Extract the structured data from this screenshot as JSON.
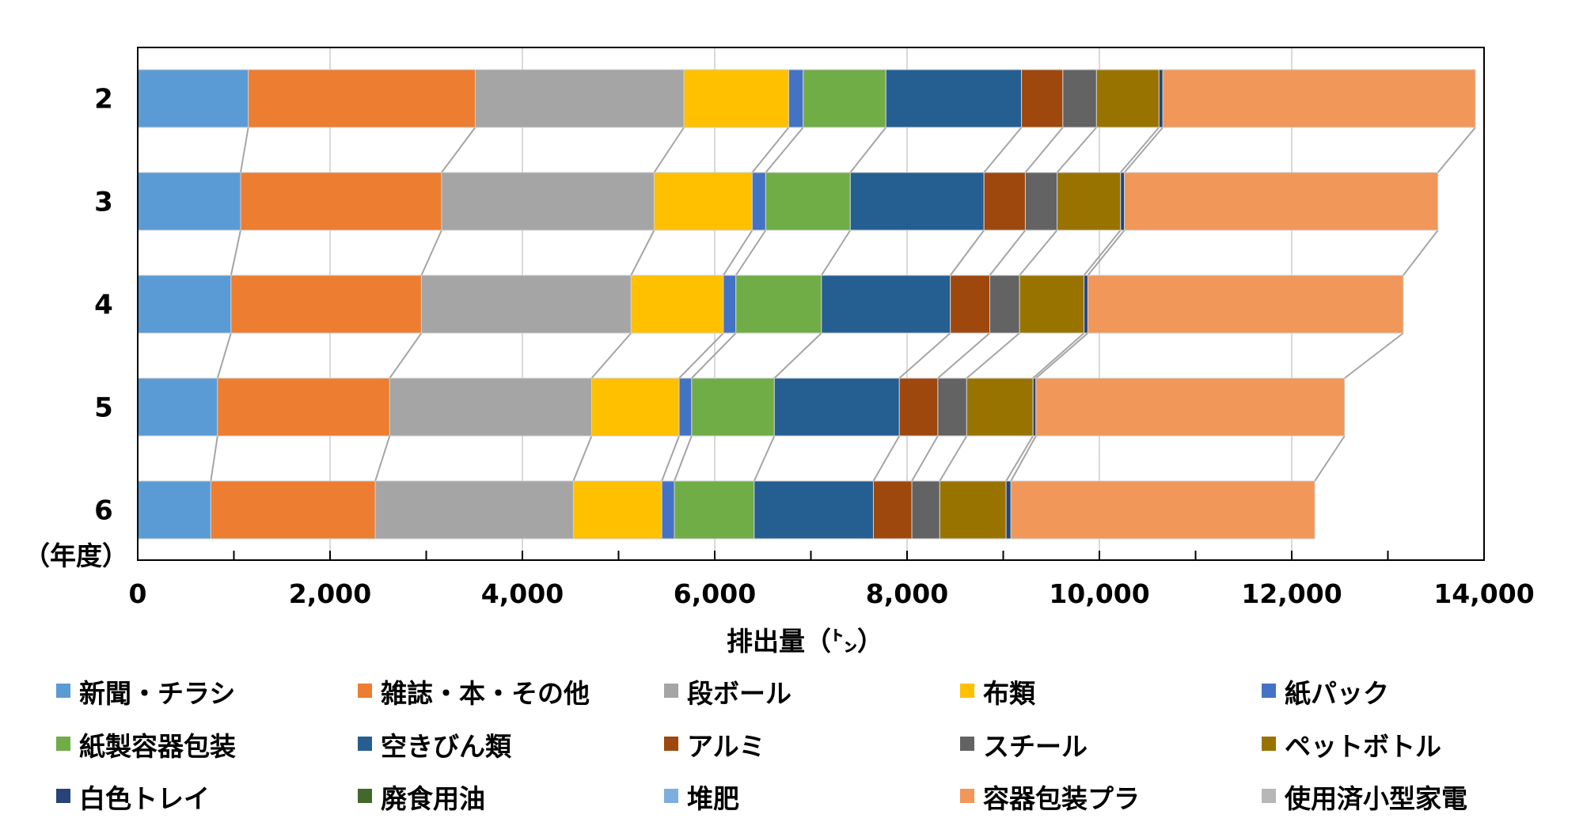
{
  "chart_data": {
    "type": "bar",
    "orientation": "horizontal",
    "stacked": true,
    "series_lines": true,
    "categories": [
      "2",
      "3",
      "4",
      "5",
      "6"
    ],
    "category_axis_label": "（年度）",
    "xlabel": "排出量（㌧）",
    "xlim": [
      0,
      14000
    ],
    "xticks": [
      0,
      2000,
      4000,
      6000,
      8000,
      10000,
      12000,
      14000
    ],
    "grid": true,
    "legend_position": "bottom",
    "series": [
      {
        "name": "新聞・チラシ",
        "color": "#5B9BD5",
        "values": [
          1150,
          1070,
          970,
          830,
          760
        ]
      },
      {
        "name": "雑誌・本・その他",
        "color": "#ED7D31",
        "values": [
          2360,
          2090,
          1980,
          1790,
          1710
        ]
      },
      {
        "name": "段ボール",
        "color": "#A5A5A5",
        "values": [
          2170,
          2210,
          2180,
          2100,
          2060
        ]
      },
      {
        "name": "布類",
        "color": "#FFC000",
        "values": [
          1090,
          1020,
          960,
          910,
          920
        ]
      },
      {
        "name": "紙パック",
        "color": "#4472C4",
        "values": [
          150,
          140,
          130,
          130,
          130
        ]
      },
      {
        "name": "紙製容器包装",
        "color": "#70AD47",
        "values": [
          860,
          880,
          890,
          860,
          830
        ]
      },
      {
        "name": "空きびん類",
        "color": "#255E91",
        "values": [
          1410,
          1390,
          1340,
          1300,
          1240
        ]
      },
      {
        "name": "アルミ",
        "color": "#9E480E",
        "values": [
          430,
          430,
          410,
          400,
          400
        ]
      },
      {
        "name": "スチール",
        "color": "#636363",
        "values": [
          350,
          330,
          310,
          300,
          290
        ]
      },
      {
        "name": "ペットボトル",
        "color": "#997300",
        "values": [
          650,
          660,
          670,
          690,
          690
        ]
      },
      {
        "name": "白色トレイ",
        "color": "#264478",
        "values": [
          40,
          40,
          40,
          30,
          50
        ]
      },
      {
        "name": "廃食用油",
        "color": "#43682B",
        "values": [
          0,
          0,
          0,
          0,
          0
        ]
      },
      {
        "name": "堆肥",
        "color": "#7CAFDD",
        "values": [
          0,
          0,
          0,
          0,
          0
        ]
      },
      {
        "name": "容器包装プラ",
        "color": "#F1975A",
        "values": [
          3250,
          3260,
          3280,
          3210,
          3160
        ]
      },
      {
        "name": "使用済小型家電",
        "color": "#B7B7B7",
        "values": [
          0,
          0,
          0,
          0,
          0
        ]
      }
    ]
  }
}
